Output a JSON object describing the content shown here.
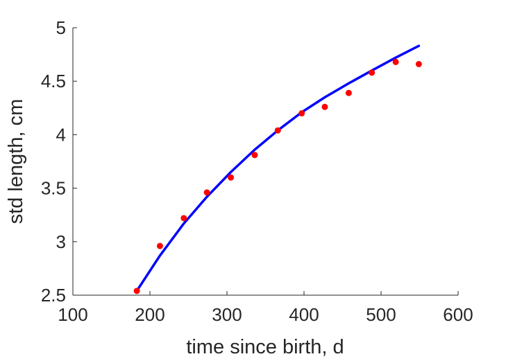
{
  "chart_data": {
    "type": "scatter",
    "xlabel": "time since birth, d",
    "ylabel": "std length, cm",
    "xlim": [
      100,
      600
    ],
    "ylim": [
      2.5,
      5
    ],
    "xticks": [
      "100",
      "200",
      "300",
      "400",
      "500",
      "600"
    ],
    "yticks": [
      "2.5",
      "3",
      "3.5",
      "4",
      "4.5",
      "5"
    ],
    "grid": false,
    "legend": "none",
    "series": [
      {
        "kind": "points",
        "color": "#ff0000",
        "x": [
          183,
          213,
          244,
          274,
          305,
          336,
          366,
          397,
          427,
          458,
          488,
          519,
          549
        ],
        "y": [
          2.54,
          2.96,
          3.22,
          3.46,
          3.6,
          3.81,
          4.04,
          4.2,
          4.26,
          4.39,
          4.58,
          4.68,
          4.66
        ]
      },
      {
        "kind": "line",
        "color": "#0000ff",
        "x": [
          183,
          213,
          244,
          274,
          305,
          336,
          366,
          397,
          427,
          458,
          488,
          519,
          549
        ],
        "y": [
          2.54,
          2.87,
          3.17,
          3.42,
          3.65,
          3.86,
          4.04,
          4.21,
          4.35,
          4.48,
          4.6,
          4.72,
          4.83
        ]
      }
    ]
  }
}
